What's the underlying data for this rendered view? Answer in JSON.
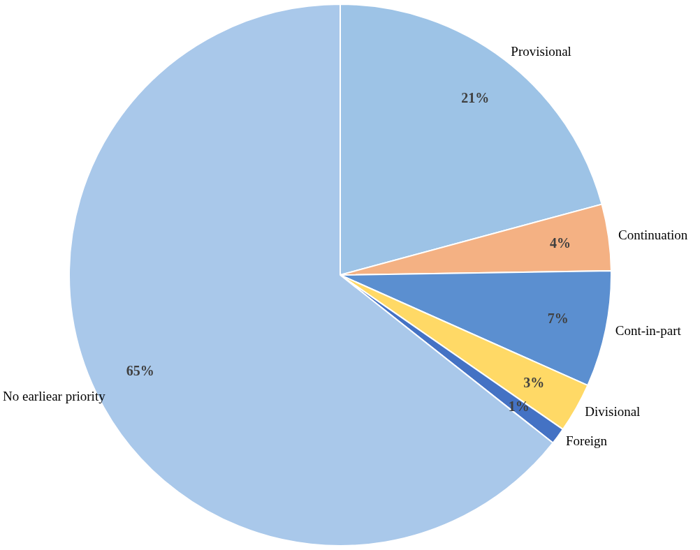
{
  "chart_data": {
    "type": "pie",
    "categories": [
      "Provisional",
      "Continuation",
      "Cont-in-part",
      "Divisional",
      "Foreign",
      "No earliear priority"
    ],
    "values": [
      21,
      4,
      7,
      3,
      1,
      65
    ],
    "value_labels": [
      "21%",
      "4%",
      "7%",
      "3%",
      "1%",
      "65%"
    ],
    "colors": [
      "#9dc3e6",
      "#f4b183",
      "#5b8fd0",
      "#ffd966",
      "#4472c4",
      "#a9c8ea"
    ],
    "legend": false
  }
}
